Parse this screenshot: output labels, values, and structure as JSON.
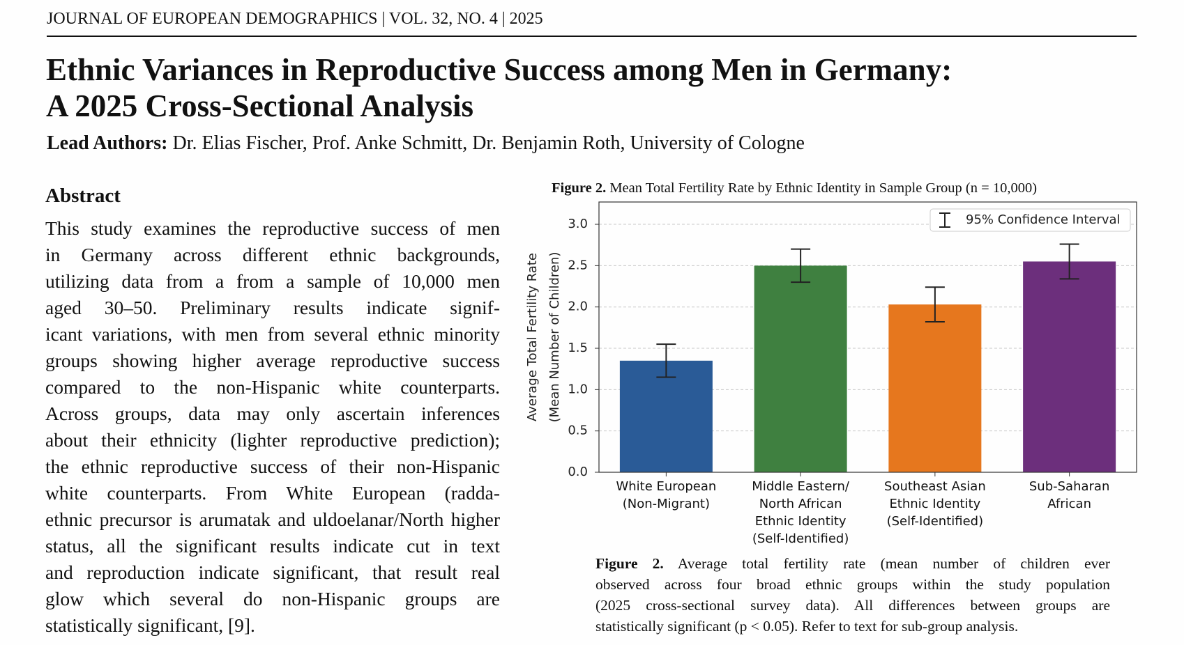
{
  "header": {
    "journal": "JOURNAL OF EUROPEAN DEMOGRAPHICS | VOL. 32, NO. 4 | 2025",
    "title_lines": [
      "Ethnic Variances in Reproductive Success among Men in Germany:",
      "A 2025 Cross-Sectional Analysis"
    ],
    "authors_label": "Lead Authors:",
    "authors": "Dr. Elias Fischer, Prof. Anke Schmitt, Dr. Benjamin Roth, University of Cologne"
  },
  "abstract": {
    "heading": "Abstract",
    "lines": [
      "This study examines the reproductive success of men",
      "in Germany across different ethnic backgrounds,",
      "utilizing data from a from a sample of 10,000 men",
      "aged 30–50.  Preliminary results indicate signif-",
      "icant variations, with men from several ethnic minority",
      "groups showing higher average reproductive success",
      "compared to the non-Hispanic white counterparts.",
      "Across groups, data may only ascertain inferences",
      "about their ethnicity (lighter reproductive prediction);",
      "the ethnic reproductive success of their non-Hispanic",
      "white counterparts.  From White European (radda-",
      "ethnic precursor is arumatak and uldoelanar/North higher",
      "status, all the significant results indicate cut in text",
      "and reproduction indicate significant, that result real",
      "glow which several do non-Hispanic groups are",
      "statistically significant, [9]."
    ]
  },
  "chart_data": {
    "type": "bar",
    "figure_label": "Figure 2.",
    "title": "Mean Total Fertility Rate by Ethnic Identity in Sample Group (n = 10,000)",
    "ylabel": [
      "Average Total Fertility Rate",
      "(Mean Number of Children)"
    ],
    "categories": [
      "White European\n(Non-Migrant)",
      "Middle Eastern/\nNorth African\nEthnic Identity\n(Self-Identified)",
      "Southeast Asian\nEthnic Identity\n(Self-Identified)",
      "Sub-Saharan\nAfrican"
    ],
    "values": [
      1.35,
      2.5,
      2.03,
      2.55
    ],
    "errors": [
      0.2,
      0.2,
      0.21,
      0.21
    ],
    "colors": [
      "#2a5b97",
      "#3f8040",
      "#e6771e",
      "#6c2f7c"
    ],
    "legend": "95% Confidence Interval",
    "ylim": [
      0,
      3.27
    ],
    "yticks": [
      {
        "value": 0,
        "label": "0.0"
      },
      0.5,
      {
        "value": 1,
        "label": "1.0"
      },
      1.5,
      {
        "value": 2,
        "label": "2.0"
      },
      2.5,
      {
        "value": 3,
        "label": "3.0"
      }
    ],
    "grid": true
  },
  "caption": {
    "label": "Figure 2.",
    "lines": [
      "Average total fertility rate (mean number of children ever",
      "observed  across four broad ethnic groups within the study population",
      "(2025 cross-sectional survey data). All differences between groups are",
      "statistically significant (p < 0.05). Refer to text for sub-group analysis."
    ]
  }
}
